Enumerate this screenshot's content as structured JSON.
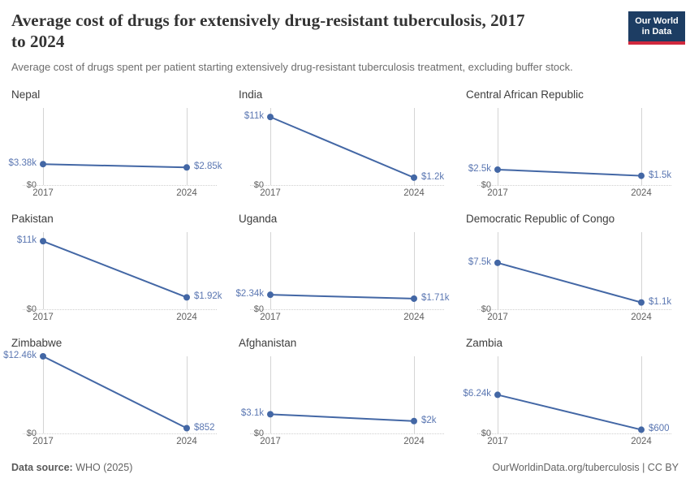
{
  "header": {
    "title": "Average cost of drugs for extensively drug-resistant tuberculosis, 2017\nto 2024",
    "subtitle": "Average cost of drugs spent per patient starting extensively drug-resistant tuberculosis treatment, excluding buffer stock.",
    "logo_line1": "Our World",
    "logo_line2": "in Data"
  },
  "axis": {
    "zero_label": "$0",
    "x_ticks": [
      "2017",
      "2024"
    ]
  },
  "chart_data": [
    {
      "type": "line",
      "title": "Nepal",
      "x": [
        2017,
        2024
      ],
      "values": [
        3380,
        2850
      ],
      "point_labels": [
        "$3.38k",
        "$2.85k"
      ],
      "ylim": [
        0,
        12460
      ]
    },
    {
      "type": "line",
      "title": "India",
      "x": [
        2017,
        2024
      ],
      "values": [
        11000,
        1200
      ],
      "point_labels": [
        "$11k",
        "$1.2k"
      ],
      "ylim": [
        0,
        12460
      ]
    },
    {
      "type": "line",
      "title": "Central African Republic",
      "x": [
        2017,
        2024
      ],
      "values": [
        2500,
        1500
      ],
      "point_labels": [
        "$2.5k",
        "$1.5k"
      ],
      "ylim": [
        0,
        12460
      ]
    },
    {
      "type": "line",
      "title": "Pakistan",
      "x": [
        2017,
        2024
      ],
      "values": [
        11000,
        1920
      ],
      "point_labels": [
        "$11k",
        "$1.92k"
      ],
      "ylim": [
        0,
        12460
      ]
    },
    {
      "type": "line",
      "title": "Uganda",
      "x": [
        2017,
        2024
      ],
      "values": [
        2340,
        1710
      ],
      "point_labels": [
        "$2.34k",
        "$1.71k"
      ],
      "ylim": [
        0,
        12460
      ]
    },
    {
      "type": "line",
      "title": "Democratic Republic of Congo",
      "x": [
        2017,
        2024
      ],
      "values": [
        7500,
        1100
      ],
      "point_labels": [
        "$7.5k",
        "$1.1k"
      ],
      "ylim": [
        0,
        12460
      ]
    },
    {
      "type": "line",
      "title": "Zimbabwe",
      "x": [
        2017,
        2024
      ],
      "values": [
        12460,
        852
      ],
      "point_labels": [
        "$12.46k",
        "$852"
      ],
      "ylim": [
        0,
        12460
      ]
    },
    {
      "type": "line",
      "title": "Afghanistan",
      "x": [
        2017,
        2024
      ],
      "values": [
        3100,
        2000
      ],
      "point_labels": [
        "$3.1k",
        "$2k"
      ],
      "ylim": [
        0,
        12460
      ]
    },
    {
      "type": "line",
      "title": "Zambia",
      "x": [
        2017,
        2024
      ],
      "values": [
        6240,
        600
      ],
      "point_labels": [
        "$6.24k",
        "$600"
      ],
      "ylim": [
        0,
        12460
      ]
    }
  ],
  "footer": {
    "source_label": "Data source:",
    "source_value": "WHO (2025)",
    "credit": "OurWorldinData.org/tuberculosis | CC BY"
  },
  "colors": {
    "line": "#4367a5",
    "point_label": "#5b77b2",
    "gridline": "#d4d4d4",
    "logo_navy": "#1d3d63",
    "logo_red": "#d0293e"
  }
}
